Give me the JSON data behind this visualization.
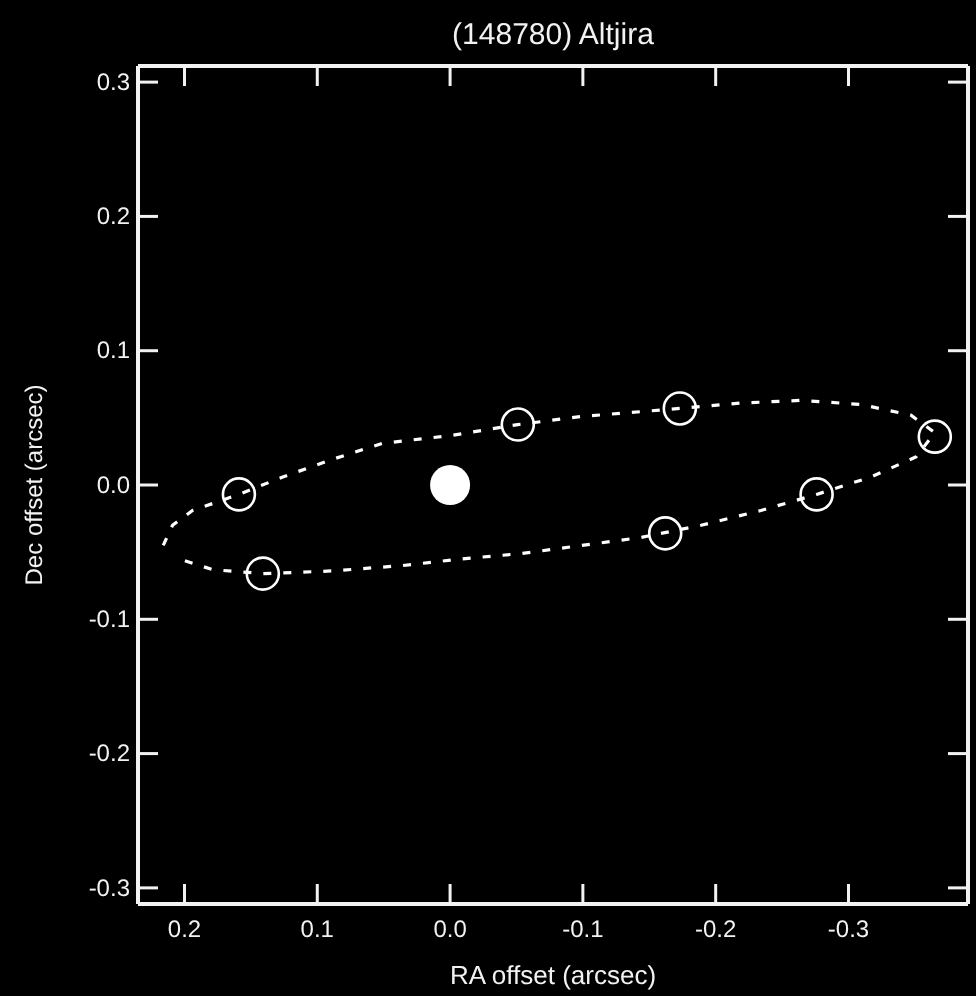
{
  "chart_data": {
    "type": "scatter",
    "title": "(148780) Altjira",
    "xlabel": "RA offset (arcsec)",
    "ylabel": "Dec offset (arcsec)",
    "xlim": [
      0.235,
      -0.39
    ],
    "ylim": [
      -0.312,
      0.312
    ],
    "xticks": [
      0.2,
      0.1,
      {
        "value": 0,
        "label": "0.0"
      },
      -0.1,
      -0.2,
      -0.3
    ],
    "yticks": [
      -0.3,
      -0.2,
      -0.1,
      {
        "value": 0,
        "label": "0.0"
      },
      0.1,
      0.2,
      0.3
    ],
    "series": [
      {
        "type": "line",
        "color": "#ffffff",
        "line_style": "dashed",
        "marker": "none",
        "x": [
          0.216,
          0.209,
          0.194,
          0.159,
          0.126,
          0.089,
          0.051,
          -0.002,
          -0.051,
          -0.099,
          -0.173,
          -0.219,
          -0.264,
          -0.309,
          -0.347,
          -0.365,
          -0.351,
          -0.317,
          -0.276,
          -0.234,
          -0.189,
          -0.144,
          -0.099,
          -0.054,
          -0.009,
          0.036,
          0.089,
          0.141,
          0.179,
          0.204
        ],
        "values": [
          -0.045,
          -0.03,
          -0.019,
          -0.007,
          0.006,
          0.019,
          0.031,
          0.037,
          0.045,
          0.051,
          0.057,
          0.061,
          0.063,
          0.06,
          0.052,
          0.039,
          0.021,
          0.006,
          -0.007,
          -0.019,
          -0.03,
          -0.039,
          -0.045,
          -0.051,
          -0.055,
          -0.06,
          -0.064,
          -0.066,
          -0.063,
          -0.055
        ]
      },
      {
        "color": "#ffffff",
        "marker": "circle",
        "x": [
          0.159,
          0.141,
          -0.051,
          -0.173,
          -0.162,
          -0.276,
          -0.365
        ],
        "values": [
          -0.007,
          -0.066,
          0.045,
          0.057,
          -0.036,
          -0.007,
          0.036
        ]
      },
      {
        "type": "bubble",
        "color": "#ffffff",
        "x": [
          0
        ],
        "values": [
          0
        ],
        "sizes": [
          1
        ]
      }
    ]
  }
}
